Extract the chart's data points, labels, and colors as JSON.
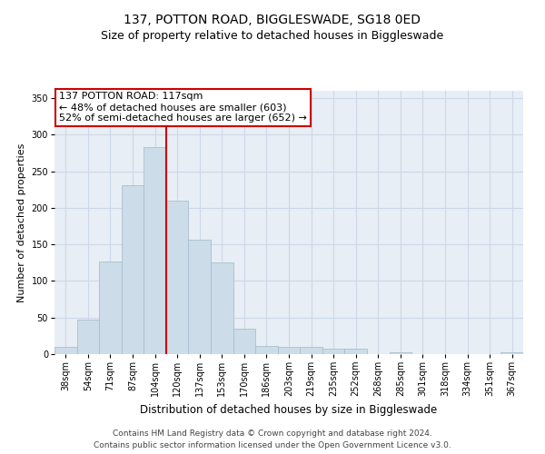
{
  "title": "137, POTTON ROAD, BIGGLESWADE, SG18 0ED",
  "subtitle": "Size of property relative to detached houses in Biggleswade",
  "xlabel": "Distribution of detached houses by size in Biggleswade",
  "ylabel": "Number of detached properties",
  "categories": [
    "38sqm",
    "54sqm",
    "71sqm",
    "87sqm",
    "104sqm",
    "120sqm",
    "137sqm",
    "153sqm",
    "170sqm",
    "186sqm",
    "203sqm",
    "219sqm",
    "235sqm",
    "252sqm",
    "268sqm",
    "285sqm",
    "301sqm",
    "318sqm",
    "334sqm",
    "351sqm",
    "367sqm"
  ],
  "values": [
    10,
    47,
    127,
    231,
    283,
    210,
    157,
    126,
    35,
    11,
    10,
    10,
    8,
    8,
    0,
    3,
    0,
    0,
    0,
    0,
    3
  ],
  "bar_color": "#ccdce8",
  "bar_edge_color": "#a8bfcf",
  "property_label": "137 POTTON ROAD: 117sqm",
  "annotation_line1": "← 48% of detached houses are smaller (603)",
  "annotation_line2": "52% of semi-detached houses are larger (652) →",
  "vline_color": "#cc0000",
  "vline_x_index": 4.5,
  "annotation_box_color": "#ffffff",
  "annotation_box_edge": "#cc0000",
  "ylim": [
    0,
    360
  ],
  "yticks": [
    0,
    50,
    100,
    150,
    200,
    250,
    300,
    350
  ],
  "grid_color": "#ccd8e8",
  "background_color": "#e8eef5",
  "footer_line1": "Contains HM Land Registry data © Crown copyright and database right 2024.",
  "footer_line2": "Contains public sector information licensed under the Open Government Licence v3.0.",
  "title_fontsize": 10,
  "subtitle_fontsize": 9,
  "xlabel_fontsize": 8.5,
  "ylabel_fontsize": 8,
  "tick_fontsize": 7,
  "annotation_fontsize": 8,
  "footer_fontsize": 6.5
}
